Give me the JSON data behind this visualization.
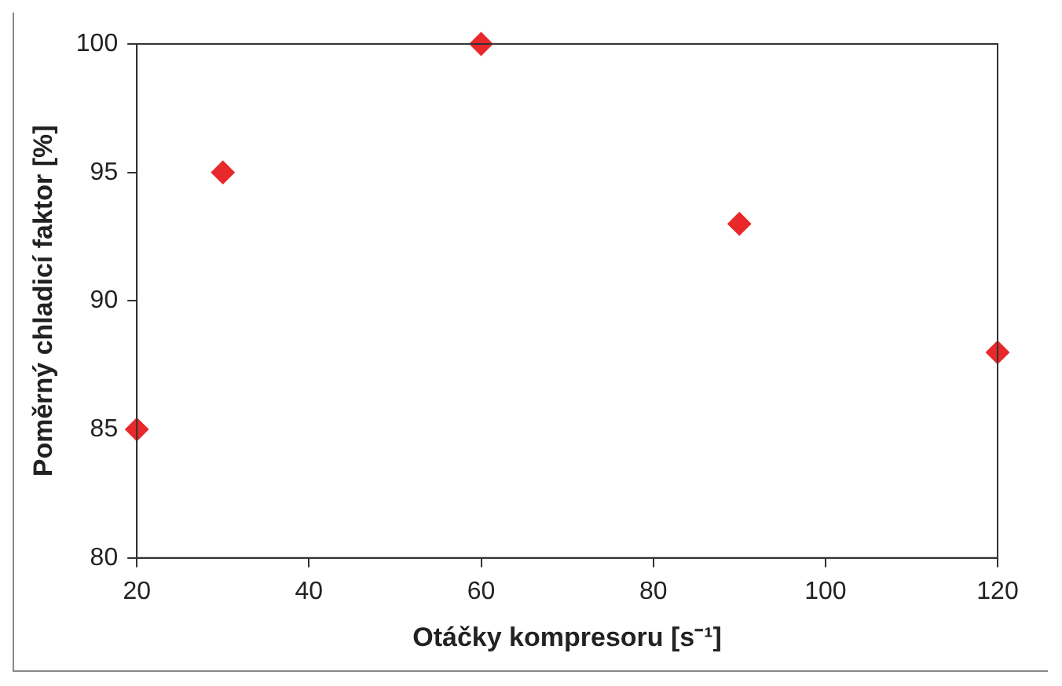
{
  "chart_data": {
    "type": "scatter",
    "xlabel": "Otáčky kompresoru [s⁻¹]",
    "ylabel": "Poměrný chladicí faktor [%]",
    "x": [
      20,
      30,
      60,
      90,
      120
    ],
    "series": [
      {
        "color": "#e8282a",
        "values": [
          85,
          95,
          100,
          93,
          88
        ]
      }
    ],
    "xlim": [
      20,
      120
    ],
    "xticks": [
      20,
      40,
      60,
      80,
      100,
      120
    ],
    "ylim": [
      80,
      100
    ],
    "yticks": [
      80,
      85,
      90,
      95,
      100
    ],
    "grid": false,
    "legend": false,
    "marker": "diamond"
  }
}
